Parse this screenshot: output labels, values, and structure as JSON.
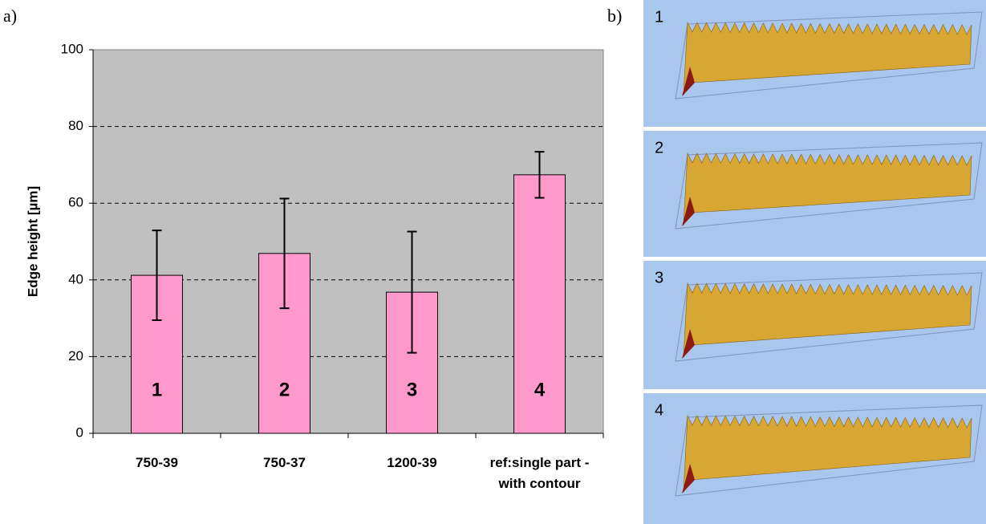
{
  "chart_data": {
    "type": "bar",
    "panel_label": "a)",
    "y_label": "Edge height [µm]",
    "categories": [
      "750-39",
      "750-37",
      "1200-39",
      "ref:single part -with contour"
    ],
    "bar_labels": [
      "1",
      "2",
      "3",
      "4"
    ],
    "values": [
      41.2,
      46.9,
      36.8,
      67.4
    ],
    "errors": [
      11.7,
      14.3,
      15.8,
      6
    ],
    "color": "#ff99cc",
    "background": "#c0c0c0",
    "ylim": [
      0,
      100
    ],
    "yticks": [
      0,
      20,
      40,
      60,
      80,
      100
    ],
    "grid": true
  },
  "panel_b": {
    "label": "b)",
    "images": [
      "1",
      "2",
      "3",
      "4"
    ]
  }
}
